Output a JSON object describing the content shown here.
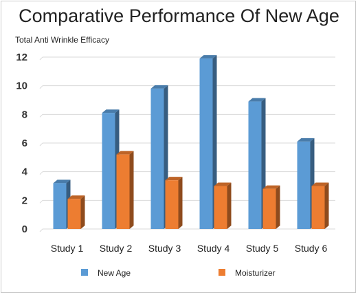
{
  "chart_data": {
    "type": "bar",
    "title": "Comparative Performance Of New Age",
    "ylabel": "Total Anti Wrinkle Efficacy",
    "xlabel": "",
    "categories": [
      "Study 1",
      "Study 2",
      "Study 3",
      "Study 4",
      "Study 5",
      "Study 6"
    ],
    "series": [
      {
        "name": "New Age",
        "values": [
          3.2,
          8.1,
          9.8,
          11.9,
          8.9,
          6.1
        ],
        "color": "#5b9bd5"
      },
      {
        "name": "Moisturizer",
        "values": [
          2.1,
          5.2,
          3.4,
          3.0,
          2.8,
          3.0
        ],
        "color": "#ed7d31"
      }
    ],
    "ylim": [
      0,
      12
    ],
    "yticks": [
      0,
      2,
      4,
      6,
      8,
      10,
      12
    ],
    "grid": true,
    "legend": "bottom",
    "style": "3d-column"
  }
}
